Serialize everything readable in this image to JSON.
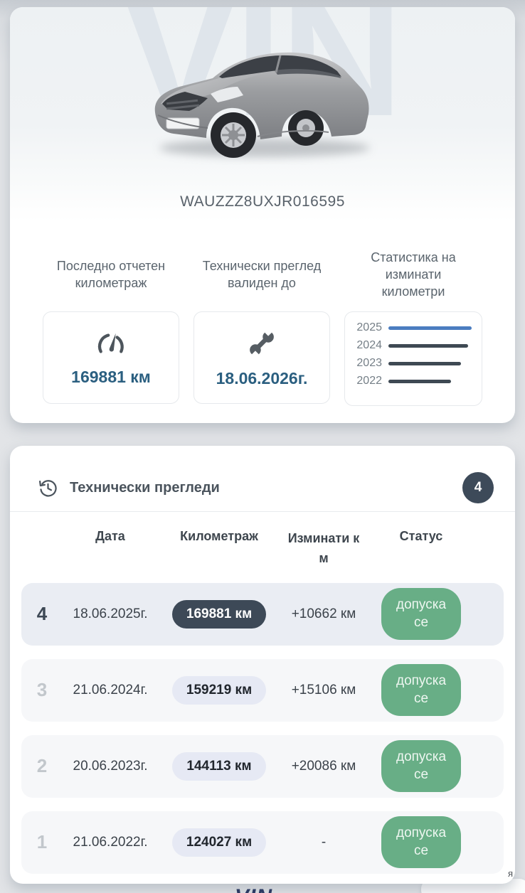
{
  "vehicle": {
    "vin": "WAUZZZ8UXJR016595",
    "watermark": "VIN"
  },
  "stats": {
    "odometer": {
      "title": "Последно отчетен километраж",
      "value": "169881 км",
      "icon": "speedometer-icon"
    },
    "inspection_valid": {
      "title": "Технически преглед валиден до",
      "value": "18.06.2026г.",
      "icon": "wrench-icon"
    },
    "mileage_stats": {
      "title": "Статистика на изминати километри"
    }
  },
  "chart_data": {
    "type": "bar",
    "orientation": "horizontal",
    "title": "Статистика на изминати километри",
    "categories": [
      "2025",
      "2024",
      "2023",
      "2022"
    ],
    "values": [
      169881,
      159219,
      144113,
      124027
    ],
    "unit": "км",
    "bar_colors": [
      "#4b7dc0",
      "#3e4953",
      "#3e4953",
      "#3e4953"
    ],
    "xlim": [
      0,
      169881
    ],
    "grid": false,
    "legend": false
  },
  "inspections": {
    "title": "Технически прегледи",
    "count": "4",
    "columns": [
      "Дата",
      "Километраж",
      "Изминати км",
      "Статус"
    ],
    "rows": [
      {
        "index": "4",
        "date": "18.06.2025г.",
        "odometer": "169881 км",
        "diff": "+10662 км",
        "status": "допуска се",
        "highlighted": true
      },
      {
        "index": "3",
        "date": "21.06.2024г.",
        "odometer": "159219 км",
        "diff": "+15106 км",
        "status": "допуска се",
        "highlighted": false
      },
      {
        "index": "2",
        "date": "20.06.2023г.",
        "odometer": "144113 км",
        "diff": "+20086 км",
        "status": "допуска се",
        "highlighted": false
      },
      {
        "index": "1",
        "date": "21.06.2022г.",
        "odometer": "124027 км",
        "diff": "-",
        "status": "допуска се",
        "highlighted": false
      }
    ]
  },
  "footer": {
    "partial_logo": "VIN",
    "partial_text": "я"
  },
  "colors": {
    "value_blue": "#2b5f80",
    "bar_blue": "#4b7dc0",
    "bar_dark": "#3e4953",
    "dark_slate": "#3d4957",
    "badge_circle": "#3d4a59",
    "status_green": "#68ae86",
    "row_highlight": "#eaedf3",
    "row_bg": "#f6f7f9"
  }
}
